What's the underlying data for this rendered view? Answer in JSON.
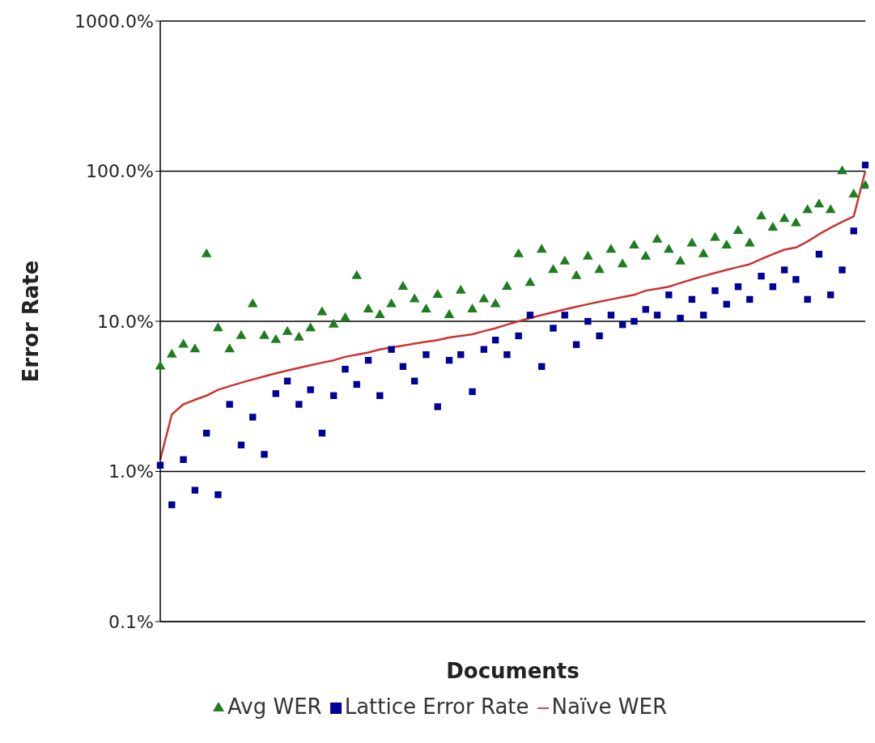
{
  "chart_data": {
    "type": "scatter",
    "xlabel": "Documents",
    "ylabel": "Error Rate",
    "categories": [
      null,
      null,
      null,
      null,
      null,
      null,
      null,
      null,
      null,
      null,
      null,
      null,
      null,
      null,
      null,
      null,
      null,
      null,
      null,
      null,
      null,
      null,
      null,
      null,
      null,
      null,
      null,
      null,
      null,
      null,
      null,
      null,
      null,
      null,
      null,
      null,
      null,
      null,
      null,
      null,
      null,
      null,
      null,
      null,
      null,
      null,
      null,
      null,
      null,
      null,
      null,
      null,
      null,
      null,
      null,
      null,
      null,
      null,
      null,
      null,
      null,
      null
    ],
    "series": [
      {
        "name": "Avg WER",
        "marker": "triangle",
        "color": "#1e7d1e",
        "values": [
          5.0,
          6.0,
          7.0,
          6.5,
          28,
          9.0,
          6.5,
          8.0,
          13,
          8.0,
          7.5,
          8.5,
          7.8,
          9.0,
          11.5,
          9.5,
          10.5,
          20,
          12,
          11,
          13,
          17,
          14,
          12,
          15,
          11,
          16,
          12,
          14,
          13,
          17,
          28,
          18,
          30,
          22,
          25,
          20,
          27,
          22,
          30,
          24,
          32,
          27,
          35,
          30,
          25,
          33,
          28,
          36,
          32,
          40,
          33,
          50,
          42,
          48,
          45,
          55,
          60,
          55,
          100,
          70,
          80
        ]
      },
      {
        "name": "Lattice Error Rate",
        "marker": "square",
        "color": "#000099",
        "values": [
          1.1,
          0.6,
          1.2,
          0.75,
          1.8,
          0.7,
          2.8,
          1.5,
          2.3,
          1.3,
          3.3,
          4.0,
          2.8,
          3.5,
          1.8,
          3.2,
          4.8,
          3.8,
          5.5,
          3.2,
          6.5,
          5.0,
          4.0,
          6.0,
          2.7,
          5.5,
          6.0,
          3.4,
          6.5,
          7.5,
          6.0,
          8.0,
          11,
          5.0,
          9.0,
          11,
          7.0,
          10,
          8.0,
          11,
          9.5,
          10,
          12,
          11,
          15,
          10.5,
          14,
          11,
          16,
          13,
          17,
          14,
          20,
          17,
          22,
          19,
          14,
          28,
          15,
          22,
          40,
          110
        ]
      },
      {
        "name": "Naïve WER",
        "type": "line",
        "marker": "none",
        "line_style": "solid",
        "color": "#cc3333",
        "values": [
          1.2,
          2.4,
          2.8,
          3.0,
          3.2,
          3.5,
          3.7,
          3.9,
          4.1,
          4.3,
          4.5,
          4.7,
          4.9,
          5.1,
          5.3,
          5.5,
          5.8,
          6.0,
          6.2,
          6.5,
          6.7,
          6.9,
          7.1,
          7.3,
          7.5,
          7.8,
          8.0,
          8.2,
          8.6,
          9.0,
          9.5,
          10,
          10.5,
          11,
          11.5,
          12,
          12.5,
          13,
          13.5,
          14,
          14.5,
          15,
          16,
          16.5,
          17,
          18,
          19,
          20,
          21,
          22,
          23,
          24,
          26,
          28,
          30,
          31,
          34,
          38,
          42,
          46,
          50,
          100
        ]
      }
    ],
    "log": "y",
    "ylim": [
      0.1,
      1000
    ],
    "yticks": [
      {
        "value": 0.1,
        "label": "0.1%"
      },
      {
        "value": 1,
        "label": "1.0%"
      },
      {
        "value": 10,
        "label": "10.0%"
      },
      {
        "value": 100,
        "label": "100.0%"
      },
      {
        "value": 1000,
        "label": "1000.0%"
      }
    ],
    "grid": "y",
    "legend": "bottom",
    "tick_labels": "y"
  }
}
